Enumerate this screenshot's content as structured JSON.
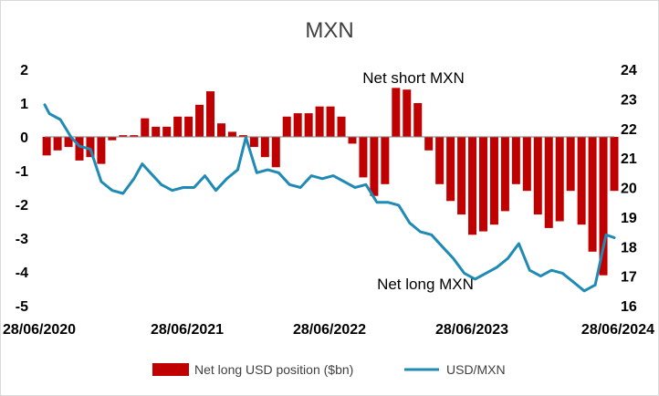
{
  "chart_data": {
    "type": "bar+line",
    "title": "MXN",
    "x_tick_labels": [
      "28/06/2020",
      "28/06/2021",
      "28/06/2022",
      "28/06/2023",
      "28/06/2024"
    ],
    "x_range": [
      "2020-06-28",
      "2024-06-28"
    ],
    "left_axis": {
      "ylim": [
        -5,
        2
      ],
      "ticks": [
        2,
        1,
        0,
        -1,
        -2,
        -3,
        -4,
        -5
      ]
    },
    "right_axis": {
      "ylim": [
        16,
        24
      ],
      "ticks": [
        24,
        23,
        22,
        21,
        20,
        19,
        18,
        17,
        16
      ]
    },
    "grid": false,
    "legend": {
      "position": "bottom",
      "entries": [
        "Net long USD position ($bn)",
        "USD/MXN"
      ]
    },
    "annotations": [
      {
        "text": "Net short MXN"
      },
      {
        "text": "Net long MXN"
      }
    ],
    "colors": {
      "bars": "#c00000",
      "line": "#1f8bb5"
    },
    "series": [
      {
        "name": "Net long USD position ($bn)",
        "axis": "left",
        "style": "bars",
        "x": [
          "2020-07-03",
          "2020-07-31",
          "2020-08-28",
          "2020-09-25",
          "2020-10-23",
          "2020-11-20",
          "2020-12-18",
          "2021-01-15",
          "2021-02-12",
          "2021-03-12",
          "2021-04-09",
          "2021-05-07",
          "2021-06-04",
          "2021-07-02",
          "2021-07-30",
          "2021-08-27",
          "2021-09-24",
          "2021-10-22",
          "2021-11-19",
          "2021-12-17",
          "2022-01-14",
          "2022-02-11",
          "2022-03-11",
          "2022-04-08",
          "2022-05-06",
          "2022-06-03",
          "2022-07-01",
          "2022-07-29",
          "2022-08-26",
          "2022-09-23",
          "2022-10-21",
          "2022-11-18",
          "2022-12-16",
          "2023-01-13",
          "2023-02-10",
          "2023-03-10",
          "2023-04-07",
          "2023-05-05",
          "2023-06-02",
          "2023-06-30",
          "2023-07-28",
          "2023-08-25",
          "2023-09-22",
          "2023-10-20",
          "2023-11-17",
          "2023-12-15",
          "2024-01-12",
          "2024-02-09",
          "2024-03-08",
          "2024-04-05",
          "2024-05-03",
          "2024-05-31",
          "2024-06-28"
        ],
        "values": [
          -0.55,
          -0.4,
          -0.3,
          -0.7,
          -0.6,
          -0.8,
          -0.1,
          0.05,
          0.05,
          0.55,
          0.3,
          0.3,
          0.6,
          0.6,
          0.95,
          1.35,
          0.4,
          0.15,
          0.05,
          -0.3,
          -0.6,
          -0.9,
          0.6,
          0.7,
          0.7,
          0.9,
          0.9,
          0.6,
          -0.2,
          -1.2,
          -1.75,
          -1.4,
          1.45,
          1.4,
          1.0,
          -0.4,
          -1.4,
          -1.9,
          -2.3,
          -2.9,
          -2.8,
          -2.6,
          -2.2,
          -1.4,
          -1.6,
          -2.3,
          -2.7,
          -2.5,
          -1.6,
          -2.6,
          -3.4,
          -4.1,
          -1.6
        ]
      },
      {
        "name": "USD/MXN",
        "axis": "right",
        "style": "line",
        "x": [
          "2020-06-28",
          "2020-07-10",
          "2020-08-07",
          "2020-09-04",
          "2020-09-25",
          "2020-10-23",
          "2020-11-20",
          "2020-12-18",
          "2021-01-15",
          "2021-02-12",
          "2021-03-05",
          "2021-03-26",
          "2021-04-23",
          "2021-05-21",
          "2021-06-18",
          "2021-07-16",
          "2021-08-13",
          "2021-09-10",
          "2021-10-08",
          "2021-11-05",
          "2021-11-26",
          "2021-12-24",
          "2022-01-21",
          "2022-02-18",
          "2022-03-18",
          "2022-04-15",
          "2022-05-13",
          "2022-06-10",
          "2022-07-08",
          "2022-08-05",
          "2022-09-02",
          "2022-09-30",
          "2022-10-28",
          "2022-11-25",
          "2022-12-23",
          "2023-01-20",
          "2023-02-17",
          "2023-03-17",
          "2023-04-14",
          "2023-05-12",
          "2023-06-09",
          "2023-07-07",
          "2023-08-04",
          "2023-09-01",
          "2023-09-29",
          "2023-10-27",
          "2023-11-24",
          "2023-12-22",
          "2024-01-19",
          "2024-02-16",
          "2024-03-15",
          "2024-04-12",
          "2024-05-10",
          "2024-06-07",
          "2024-06-28"
        ],
        "values": [
          22.8,
          22.5,
          22.3,
          21.7,
          21.4,
          21.3,
          20.2,
          19.9,
          19.8,
          20.3,
          20.8,
          20.5,
          20.1,
          19.9,
          20.0,
          20.0,
          20.4,
          19.9,
          20.3,
          20.6,
          21.7,
          20.5,
          20.6,
          20.5,
          20.1,
          20.0,
          20.4,
          20.3,
          20.4,
          20.2,
          20.0,
          20.1,
          19.5,
          19.5,
          19.4,
          18.8,
          18.5,
          18.4,
          18.0,
          17.6,
          17.1,
          16.9,
          17.1,
          17.3,
          17.6,
          18.1,
          17.2,
          17.0,
          17.2,
          17.1,
          16.8,
          16.5,
          16.7,
          18.4,
          18.3
        ]
      }
    ]
  }
}
